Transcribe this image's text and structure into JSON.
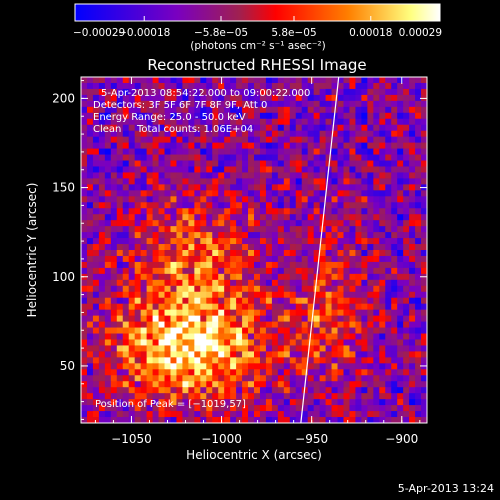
{
  "chart_data": {
    "type": "heatmap",
    "title": "Reconstructed RHESSI Image",
    "xlabel": "Heliocentric X (arcsec)",
    "ylabel": "Heliocentric Y (arcsec)",
    "xlim": [
      -1078,
      -886
    ],
    "ylim": [
      18,
      212
    ],
    "xticks": [
      -1050,
      -1000,
      -950,
      -900
    ],
    "xtick_labels": [
      "−1050",
      "−1000",
      "−950",
      "−900"
    ],
    "yticks": [
      50,
      100,
      150,
      200
    ],
    "ytick_labels": [
      "50",
      "100",
      "150",
      "200"
    ],
    "colorbar": {
      "min": -0.00029,
      "max": 0.00029,
      "tick_values": [
        -0.00029,
        -0.00018,
        -5.8e-05,
        5.8e-05,
        0.00018,
        0.00029
      ],
      "tick_labels": [
        "−0.00029",
        "−0.00018",
        "−5.8e−05",
        "5.8e−05",
        "0.00018",
        "0.00029"
      ],
      "unit_label": "(photons cm⁻² s⁻¹ asec⁻²)",
      "colors": [
        "#0000ff",
        "#7a00c0",
        "#a02050",
        "#ff0000",
        "#ff8000",
        "#ffff80",
        "#ffffff"
      ]
    },
    "annotations": [
      "5-Apr-2013 08:54:22.000 to 09:00:22.000",
      "Detectors: 3F 5F 6F 7F 8F 9F, Att 0",
      "Energy Range: 25.0 - 50.0 keV",
      "Clean",
      "Total counts: 1.06E+04",
      "Position of Peak = [−1019,57]"
    ],
    "peak": {
      "x": -1019,
      "y": 57
    },
    "limb_line": [
      [
        -956,
        18
      ],
      [
        -935,
        212
      ]
    ],
    "grid": false
  },
  "timestamp": "5-Apr-2013 13:24"
}
